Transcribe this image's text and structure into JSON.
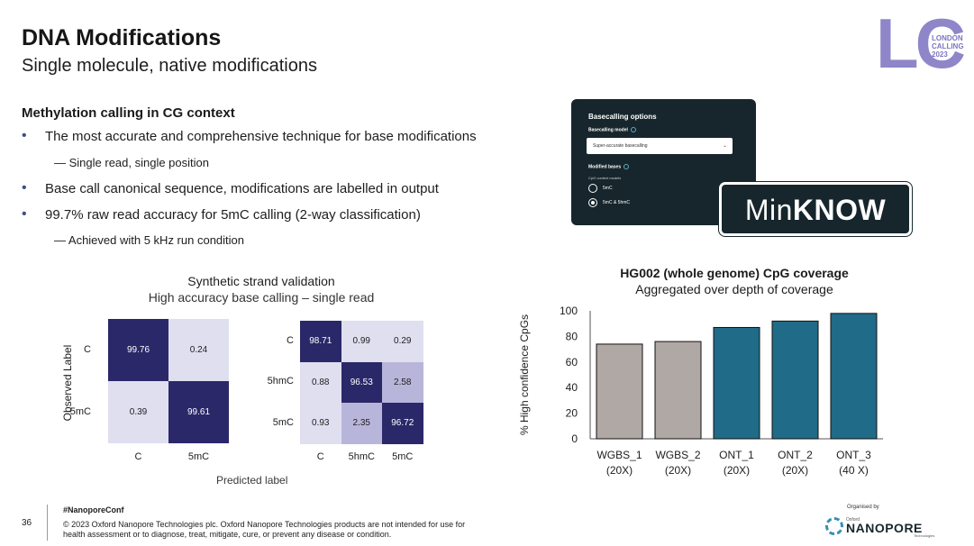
{
  "header": {
    "title": "DNA Modifications",
    "subtitle": "Single molecule, native modifications"
  },
  "logo": {
    "letters": "LC",
    "line1": "LONDON",
    "line2": "CALLING",
    "line3": "2023"
  },
  "section": {
    "heading": "Methylation calling in CG context",
    "bullets": [
      "The most accurate and comprehensive technique for base modifications",
      "Base call canonical sequence, modifications are labelled in output",
      "99.7% raw read accuracy for 5mC calling (2-way classification)"
    ],
    "sub_bullets": [
      "— Single read, single position",
      "— Achieved with 5 kHz run condition"
    ]
  },
  "basecalling_card": {
    "title": "Basecalling options",
    "model_label": "Basecalling model",
    "model_value": "Super-accurate basecalling",
    "modified_label": "Modified bases",
    "cpg_label": "CpG context models",
    "options": [
      "5mC",
      "5mC & 5hmC"
    ],
    "selected": "5mC & 5hmC"
  },
  "minknow": {
    "prefix": "Min",
    "suffix": "KNOW"
  },
  "colors": {
    "dark_navy": "#2b2869",
    "light_lavender": "#e0dff0",
    "mid_lavender": "#b8b5da",
    "bar_gray": "#b0a8a4",
    "bar_teal": "#206b87",
    "card_dark": "#16262c",
    "accent_purple": "#8e86c8"
  },
  "chart_data": [
    {
      "type": "heatmap",
      "title": "Synthetic strand validation",
      "subtitle": "High accuracy base calling – single read",
      "ylabel": "Observed Label",
      "xlabel": "Predicted label",
      "rows": [
        "C",
        "5mC"
      ],
      "cols": [
        "C",
        "5mC"
      ],
      "values": [
        [
          99.76,
          0.24
        ],
        [
          0.39,
          99.61
        ]
      ]
    },
    {
      "type": "heatmap",
      "title": "",
      "rows": [
        "C",
        "5hmC",
        "5mC"
      ],
      "cols": [
        "C",
        "5hmC",
        "5mC"
      ],
      "values": [
        [
          98.71,
          0.99,
          0.29
        ],
        [
          0.88,
          96.53,
          2.58
        ],
        [
          0.93,
          2.35,
          96.72
        ]
      ]
    },
    {
      "type": "bar",
      "title": "HG002 (whole genome) CpG coverage",
      "subtitle": "Aggregated over depth of coverage",
      "ylabel": "% High confidence CpGs",
      "xlabel": "",
      "categories": [
        "WGBS_1",
        "WGBS_2",
        "ONT_1",
        "ONT_2",
        "ONT_3"
      ],
      "category_sublabels": [
        "(20X)",
        "(20X)",
        "(20X)",
        "(20X)",
        "(40 X)"
      ],
      "values": [
        74,
        76,
        87,
        92,
        98
      ],
      "ylim": [
        0,
        100
      ],
      "yticks": [
        0,
        20,
        40,
        60,
        80,
        100
      ],
      "bar_groups": [
        "gray",
        "gray",
        "teal",
        "teal",
        "teal"
      ]
    }
  ],
  "footer": {
    "page_number": "36",
    "hashtag": "#NanoporeConf",
    "copyright": "© 2023 Oxford Nanopore Technologies plc. Oxford Nanopore Technologies products are not intended for use for health assessment or to diagnose, treat, mitigate, cure, or prevent any disease or condition.",
    "organised_by": "Organised by",
    "org_small": "Oxford",
    "org_name": "NANOPORE",
    "org_tech": "Technologies"
  }
}
